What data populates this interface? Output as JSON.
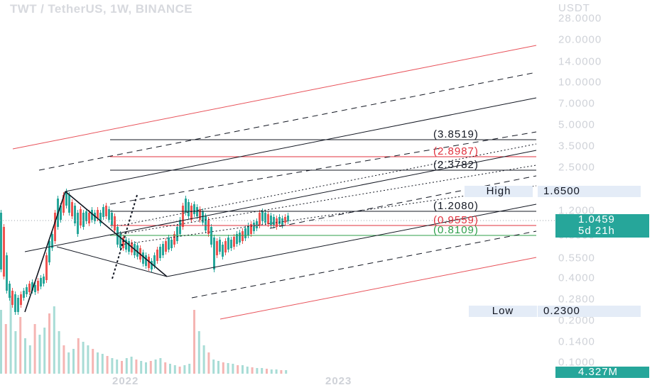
{
  "chart_data": {
    "type": "candlestick",
    "title": "TWT / TetherUS, 1W, BINANCE",
    "yaxis_unit": "USDT",
    "scale": "log",
    "y_ticks": [
      "28.0000",
      "20.0000",
      "14.0000",
      "10.0000",
      "7.0000",
      "5.0000",
      "3.5000",
      "2.5000",
      "1.2000",
      "0.8000",
      "0.5500",
      "0.4000",
      "0.2800",
      "0.2000",
      "0.1400",
      "0.1000"
    ],
    "x_ticks": [
      "2022",
      "2023"
    ],
    "current_price": "1.0459",
    "countdown": "5d 21h",
    "high_label": "High",
    "high_value": "1.6500",
    "low_label": "Low",
    "low_value": "0.2300",
    "volume_label": "4.327M",
    "fib_levels": [
      {
        "label": "(3.8519)",
        "color": "#131722"
      },
      {
        "label": "(2.8987)",
        "color": "#e0313d"
      },
      {
        "label": "(2.3782)",
        "color": "#131722"
      },
      {
        "label": "(1.2080)",
        "color": "#131722"
      },
      {
        "label": "(0.9559)",
        "color": "#e0313d"
      },
      {
        "label": "(0.8109)",
        "color": "#2e9f4a"
      }
    ],
    "colors": {
      "up": "#26a69a",
      "down": "#ef5350",
      "fib_red": "#e0313d",
      "fib_green": "#2e9f4a"
    },
    "grid": false
  }
}
